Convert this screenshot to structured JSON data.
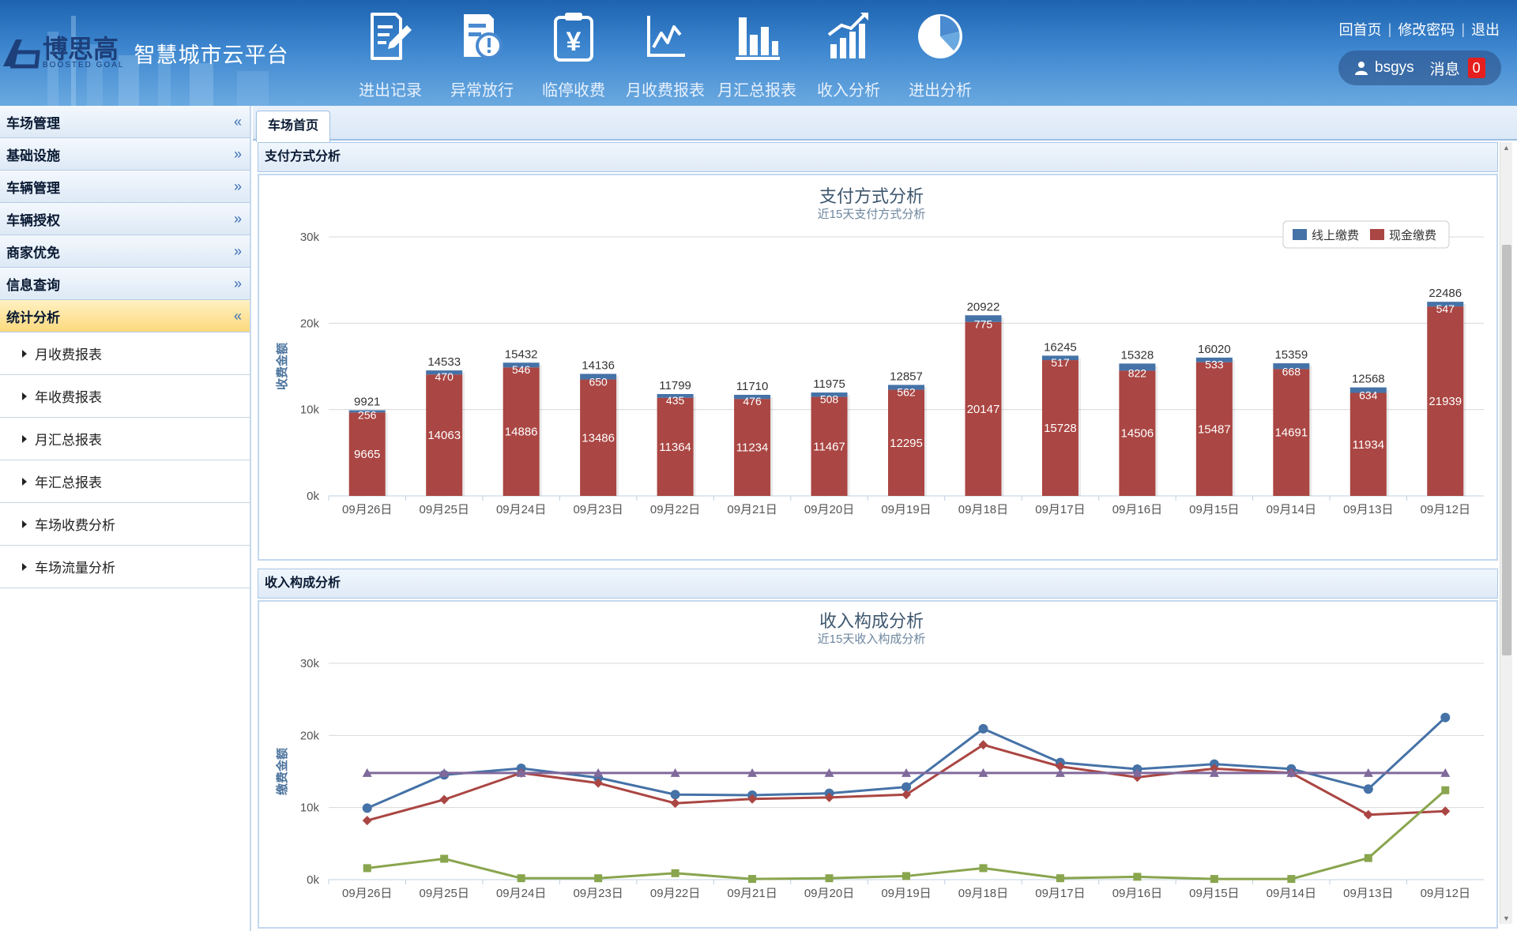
{
  "header": {
    "brand_cn": "博思高",
    "brand_en": "BOOSTED GOAL",
    "platform": "智慧城市云平台",
    "nav": [
      {
        "label": "进出记录",
        "icon": "edit-document-icon"
      },
      {
        "label": "异常放行",
        "icon": "document-alert-icon"
      },
      {
        "label": "临停收费",
        "icon": "yuan-clipboard-icon"
      },
      {
        "label": "月收费报表",
        "icon": "line-chart-icon"
      },
      {
        "label": "月汇总报表",
        "icon": "bar-chart-icon"
      },
      {
        "label": "收入分析",
        "icon": "growth-chart-icon"
      },
      {
        "label": "进出分析",
        "icon": "pie-chart-icon"
      }
    ],
    "links": {
      "home": "回首页",
      "change_password": "修改密码",
      "logout": "退出"
    },
    "user": {
      "name": "bsgys",
      "messages_label": "消息",
      "message_count": "0"
    }
  },
  "sidebar": {
    "sections": [
      {
        "label": "车场管理",
        "chevron": "«"
      },
      {
        "label": "基础设施",
        "chevron": "»"
      },
      {
        "label": "车辆管理",
        "chevron": "»"
      },
      {
        "label": "车辆授权",
        "chevron": "»"
      },
      {
        "label": "商家优免",
        "chevron": "»"
      },
      {
        "label": "信息查询",
        "chevron": "»"
      },
      {
        "label": "统计分析",
        "chevron": "«"
      }
    ],
    "sub_items": [
      "月收费报表",
      "年收费报表",
      "月汇总报表",
      "年汇总报表",
      "车场收费分析",
      "车场流量分析"
    ]
  },
  "tabs": {
    "active": "车场首页"
  },
  "panels": {
    "payment": "支付方式分析",
    "income": "收入构成分析"
  },
  "colors": {
    "online": "#4572a7",
    "cash": "#aa4643",
    "purple": "#80699b",
    "green": "#89a54e"
  },
  "chart_data": [
    {
      "type": "bar",
      "stacked": true,
      "title": "支付方式分析",
      "subtitle": "近15天支付方式分析",
      "ylabel": "收费金额",
      "ylim": [
        0,
        30000
      ],
      "yticks": [
        "0k",
        "10k",
        "20k",
        "30k"
      ],
      "legend": "top-right",
      "categories": [
        "09月26日",
        "09月25日",
        "09月24日",
        "09月23日",
        "09月22日",
        "09月21日",
        "09月20日",
        "09月19日",
        "09月18日",
        "09月17日",
        "09月16日",
        "09月15日",
        "09月14日",
        "09月13日",
        "09月12日"
      ],
      "series": [
        {
          "name": "线上缴费",
          "values": [
            256,
            470,
            546,
            650,
            435,
            476,
            508,
            562,
            775,
            517,
            822,
            533,
            668,
            634,
            547
          ]
        },
        {
          "name": "现金缴费",
          "values": [
            9665,
            14063,
            14886,
            13486,
            11364,
            11234,
            11467,
            12295,
            20147,
            15728,
            14506,
            15487,
            14691,
            11934,
            21939
          ]
        }
      ],
      "totals": [
        9921,
        14533,
        15432,
        14136,
        11799,
        11710,
        11975,
        12857,
        20922,
        16245,
        15328,
        16020,
        15359,
        12568,
        22486
      ]
    },
    {
      "type": "line",
      "title": "收入构成分析",
      "subtitle": "近15天收入构成分析",
      "ylabel": "缴费金额",
      "ylim": [
        0,
        30000
      ],
      "yticks": [
        "0k",
        "10k",
        "20k",
        "30k"
      ],
      "categories": [
        "09月26日",
        "09月25日",
        "09月24日",
        "09月23日",
        "09月22日",
        "09月21日",
        "09月20日",
        "09月19日",
        "09月18日",
        "09月17日",
        "09月16日",
        "09月15日",
        "09月14日",
        "09月13日",
        "09月12日"
      ],
      "series": [
        {
          "name": "blue",
          "color": "#4572a7",
          "marker": "circle",
          "values": [
            9921,
            14533,
            15432,
            14136,
            11799,
            11710,
            11975,
            12857,
            20922,
            16245,
            15328,
            16020,
            15359,
            12568,
            22486
          ]
        },
        {
          "name": "red",
          "color": "#aa4643",
          "marker": "diamond",
          "values": [
            8200,
            11100,
            14800,
            13400,
            10600,
            11200,
            11400,
            11800,
            18700,
            15700,
            14200,
            15400,
            14800,
            9000,
            9500
          ]
        },
        {
          "name": "purple",
          "color": "#80699b",
          "marker": "triangle",
          "values": [
            14800,
            14800,
            14800,
            14800,
            14800,
            14800,
            14800,
            14800,
            14800,
            14800,
            14800,
            14800,
            14800,
            14800,
            14800
          ]
        },
        {
          "name": "green",
          "color": "#89a54e",
          "marker": "square",
          "values": [
            1600,
            2900,
            200,
            200,
            900,
            100,
            200,
            500,
            1600,
            200,
            400,
            100,
            100,
            3000,
            12400
          ]
        }
      ]
    }
  ]
}
